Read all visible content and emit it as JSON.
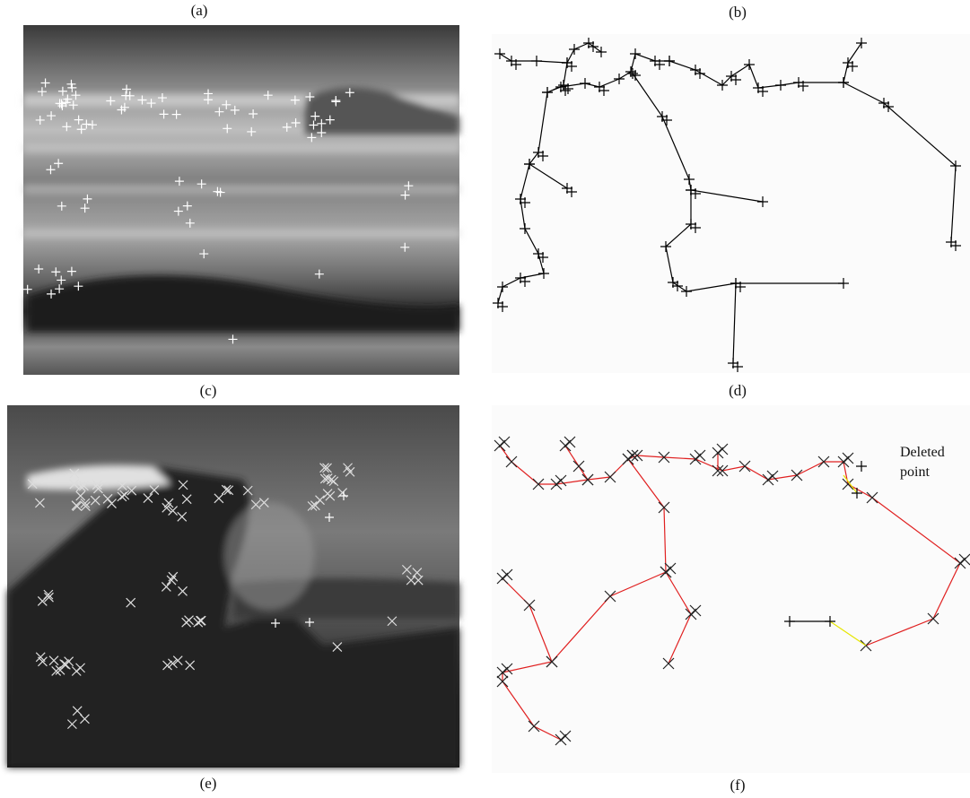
{
  "panels": {
    "a": {
      "label": "(a)"
    },
    "b": {
      "label": "(b)"
    },
    "c": {
      "label": "(c)"
    },
    "d": {
      "label": "(d)"
    },
    "e": {
      "label": "(e)"
    },
    "f": {
      "label": "(f)"
    }
  },
  "annotation": "Deleted point"
}
